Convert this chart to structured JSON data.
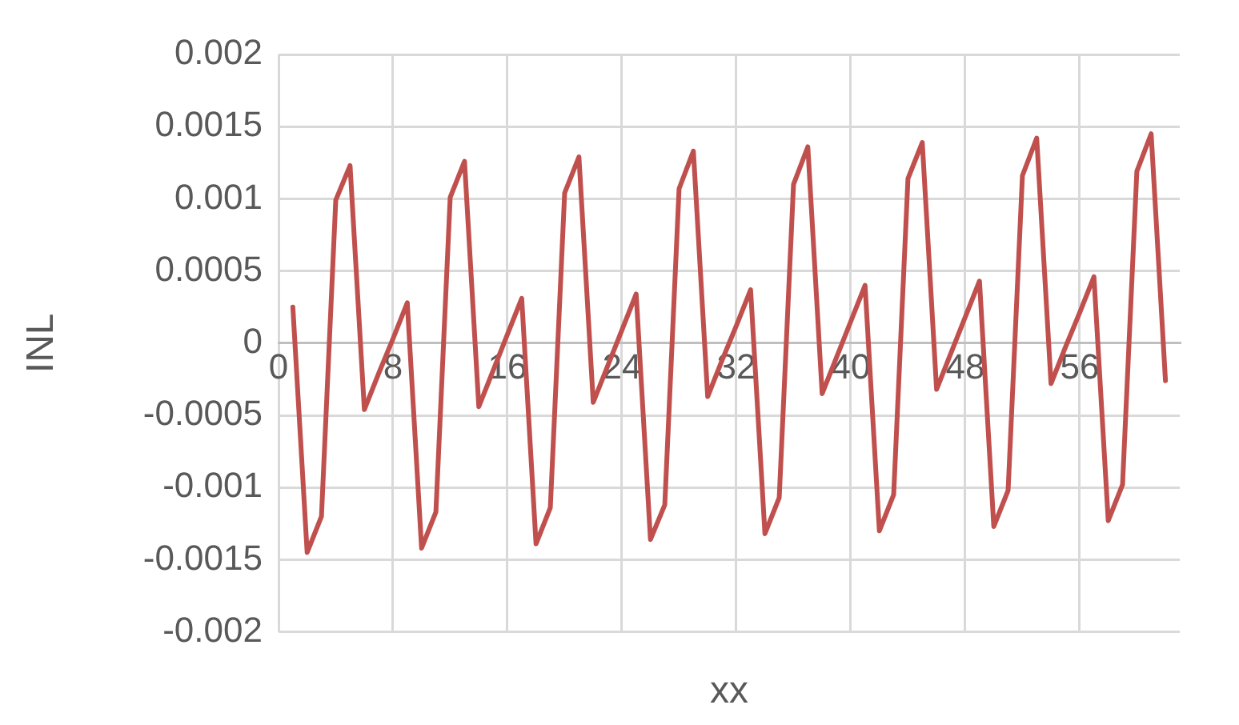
{
  "chart_data": {
    "type": "line",
    "xlabel": "xx",
    "ylabel": "INL",
    "x": [
      1,
      2,
      3,
      4,
      5,
      6,
      7,
      8,
      9,
      10,
      11,
      12,
      13,
      14,
      15,
      16,
      17,
      18,
      19,
      20,
      21,
      22,
      23,
      24,
      25,
      26,
      27,
      28,
      29,
      30,
      31,
      32,
      33,
      34,
      35,
      36,
      37,
      38,
      39,
      40,
      41,
      42,
      43,
      44,
      45,
      46,
      47,
      48,
      49,
      50,
      51,
      52,
      53,
      54,
      55,
      56,
      57,
      58,
      59,
      60,
      61,
      62
    ],
    "series": [
      {
        "color": "#c0504d",
        "values": [
          0.00025,
          -0.00145,
          -0.0012,
          0.00099,
          0.00123,
          -0.00046,
          -0.00021,
          3e-05,
          0.00028,
          -0.00142,
          -0.00117,
          0.00101,
          0.00126,
          -0.00044,
          -0.00019,
          6e-05,
          0.00031,
          -0.00139,
          -0.00114,
          0.00104,
          0.00129,
          -0.00041,
          -0.00016,
          9e-05,
          0.00034,
          -0.00136,
          -0.00112,
          0.00107,
          0.00133,
          -0.00037,
          -0.00012,
          0.00012,
          0.00037,
          -0.00132,
          -0.00107,
          0.0011,
          0.00136,
          -0.00035,
          -0.0001,
          0.00015,
          0.0004,
          -0.0013,
          -0.00105,
          0.00114,
          0.00139,
          -0.00032,
          -7e-05,
          0.00018,
          0.00043,
          -0.00127,
          -0.00102,
          0.00116,
          0.00142,
          -0.00028,
          -3e-05,
          0.00021,
          0.00046,
          -0.00123,
          -0.00098,
          0.00119,
          0.00145,
          -0.00026
        ]
      }
    ],
    "xlim": [
      0,
      63
    ],
    "xticks": [
      0,
      8,
      16,
      24,
      32,
      40,
      48,
      56
    ],
    "ylim": [
      -0.002,
      0.002
    ],
    "yticks": [
      -0.002,
      -0.0015,
      -0.001,
      -0.0005,
      0,
      0.0005,
      0.001,
      0.0015,
      0.002
    ],
    "grid": true,
    "legend": false,
    "marker": "none",
    "line_style": "solid"
  }
}
